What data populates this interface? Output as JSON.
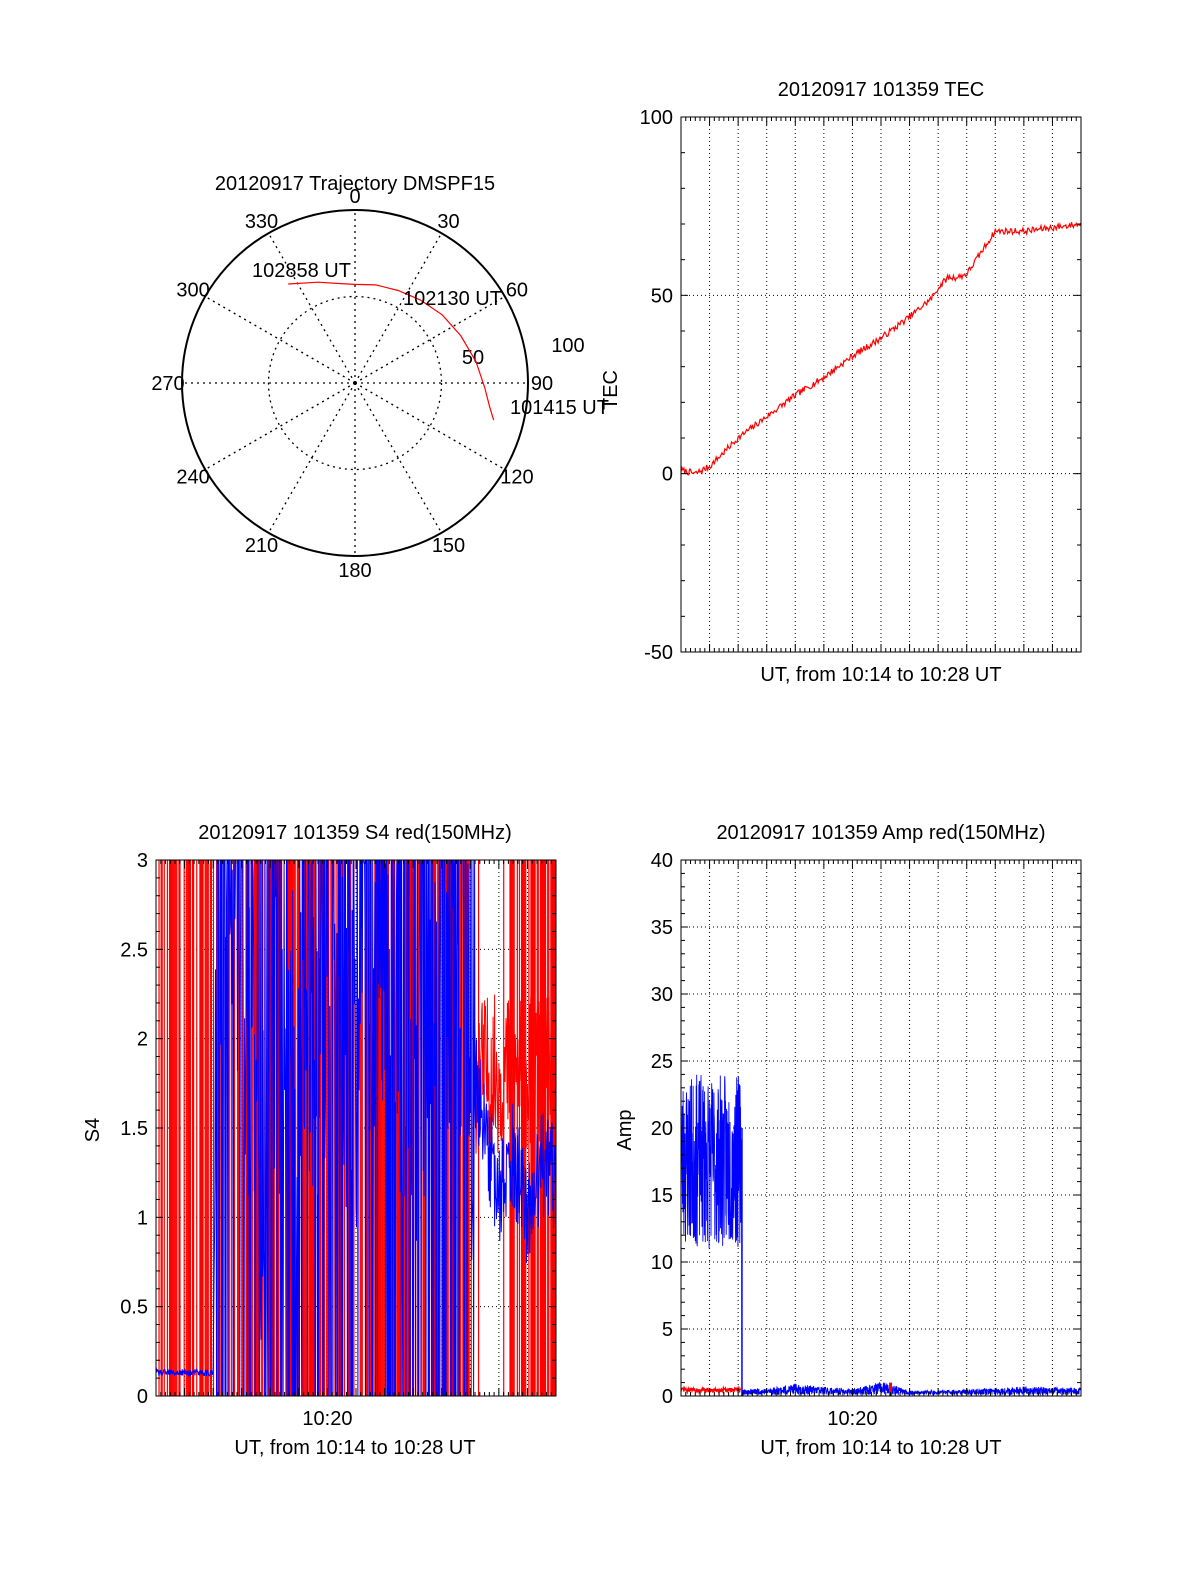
{
  "colors": {
    "red": "#ff0000",
    "blue": "#0000ff",
    "axis": "#000000",
    "grid": "#000000"
  },
  "chart_data": [
    {
      "id": "trajectory",
      "type": "scatter",
      "subtype": "polar-skyplot",
      "title": "20120917 Trajectory DMSPF15",
      "azimuth_labels": [
        "0",
        "30",
        "60",
        "90",
        "120",
        "150",
        "180",
        "210",
        "240",
        "270",
        "300",
        "330"
      ],
      "ring_labels": [
        "50",
        "100"
      ],
      "track_labels": [
        {
          "text": "102858 UT",
          "azimuth": 326,
          "zenith": 67
        },
        {
          "text": "102130 UT",
          "azimuth": 42,
          "zenith": 60
        },
        {
          "text": "101415 UT",
          "azimuth": 105,
          "zenith": 81
        }
      ],
      "track": {
        "color": "#ff0000",
        "azimuth": [
          326,
          340,
          352,
          0,
          12,
          25,
          38,
          52,
          66,
          80,
          92,
          100,
          105
        ],
        "zenith": [
          69,
          62,
          58,
          57,
          58,
          59,
          61,
          64,
          67,
          71,
          75,
          79,
          83
        ]
      },
      "zenith_max": 100,
      "grid": true
    },
    {
      "id": "tec",
      "type": "line",
      "title": "20120917 101359 TEC",
      "xlabel": "UT, from 10:14 to 10:28 UT",
      "ylabel": "TEC",
      "xlim": [
        "10:14",
        "10:28"
      ],
      "ylim": [
        -50,
        100
      ],
      "yticks": [
        "-50",
        "0",
        "50",
        "100"
      ],
      "xticks": [],
      "grid": true,
      "series": [
        {
          "color": "#ff0000",
          "x": [
            "10:14:00",
            "10:14:30",
            "10:15:00",
            "10:15:30",
            "10:16:00",
            "10:17:00",
            "10:18:00",
            "10:19:00",
            "10:20:00",
            "10:21:00",
            "10:22:00",
            "10:22:45",
            "10:23:00",
            "10:23:20",
            "10:23:40",
            "10:24:00",
            "10:24:30",
            "10:25:00",
            "10:25:20",
            "10:26:00",
            "10:27:00",
            "10:28:00"
          ],
          "values": [
            1,
            0,
            2,
            6,
            10,
            16,
            22,
            27,
            33,
            38,
            44,
            49,
            52,
            55,
            55,
            56,
            62,
            68,
            68,
            68,
            69,
            70
          ]
        }
      ]
    },
    {
      "id": "s4",
      "type": "line",
      "title": "20120917 101359 S4 red(150MHz)",
      "xlabel": "UT, from 10:14 to 10:28 UT",
      "ylabel": "S4",
      "xlim": [
        "10:14",
        "10:28"
      ],
      "ylim": [
        0,
        3
      ],
      "yticks": [
        "0",
        "0.5",
        "1",
        "1.5",
        "2",
        "2.5",
        "3"
      ],
      "xticks": [
        "10:20"
      ],
      "grid": true,
      "series": [
        {
          "color": "#0000ff",
          "x": [
            "10:14:00",
            "10:16:00",
            "10:16:10",
            "10:17:00",
            "10:18:00",
            "10:18:10",
            "10:19:00",
            "10:20:00",
            "10:21:00",
            "10:22:00",
            "10:23:00",
            "10:24:00",
            "10:25:00",
            "10:26:00",
            "10:26:30",
            "10:27:00",
            "10:27:30",
            "10:28:00"
          ],
          "values": [
            0.13,
            0.13,
            2.8,
            2.6,
            0.65,
            2.2,
            1.8,
            2.4,
            2.0,
            2.8,
            1.4,
            2.6,
            1.9,
            1.1,
            1.35,
            1.0,
            1.3,
            1.2
          ]
        }
      ]
    },
    {
      "id": "amp",
      "type": "line",
      "title": "20120917 101359 Amp red(150MHz)",
      "xlabel": "UT, from 10:14 to 10:28 UT",
      "ylabel": "Amp",
      "xlim": [
        "10:14",
        "10:28"
      ],
      "ylim": [
        0,
        40
      ],
      "yticks": [
        "0",
        "5",
        "10",
        "15",
        "20",
        "25",
        "30",
        "35",
        "40"
      ],
      "xticks": [
        "10:20"
      ],
      "grid": true,
      "series": [
        {
          "color": "#0000ff",
          "x": [
            "10:14:00",
            "10:15:00",
            "10:16:00",
            "10:16:08",
            "10:17:00",
            "10:18:00",
            "10:20:00",
            "10:21:00",
            "10:22:00",
            "10:24:00",
            "10:26:00",
            "10:28:00"
          ],
          "values": [
            17,
            16,
            15,
            0.4,
            0.5,
            0.8,
            0.4,
            1.0,
            0.3,
            0.4,
            0.6,
            0.5
          ]
        },
        {
          "color": "#ff0000",
          "x": [
            "10:14:00",
            "10:16:00",
            "10:21:00",
            "10:21:30"
          ],
          "values": [
            0.3,
            0.3,
            0.3,
            0.9
          ]
        }
      ]
    }
  ]
}
